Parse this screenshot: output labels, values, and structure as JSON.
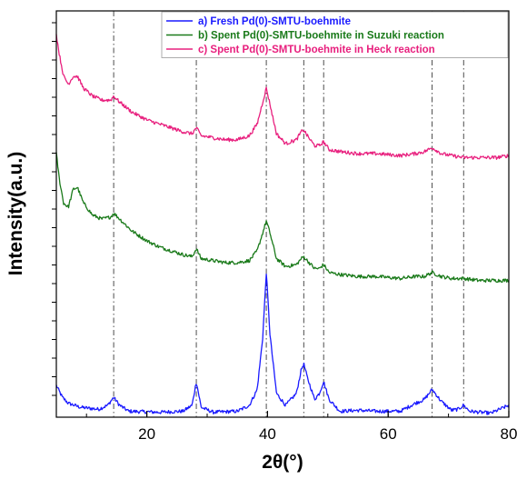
{
  "chart_data": {
    "type": "line",
    "title": "",
    "xlabel": "2θ(°)",
    "ylabel": "Intensity(a.u.)",
    "xlim": [
      5,
      80
    ],
    "x_ticks": [
      20,
      40,
      60,
      80
    ],
    "y_ticks_labeled": false,
    "reference_lines_x": [
      14.5,
      28.2,
      39.8,
      46.0,
      49.3,
      67.3,
      72.5
    ],
    "legend_position": "top-right",
    "grid": false,
    "series": [
      {
        "name": "a) Fresh Pd(0)-SMTU-boehmite",
        "color": "#1a1aff",
        "points": [
          [
            5,
            0.16
          ],
          [
            6,
            0.1
          ],
          [
            7,
            0.07
          ],
          [
            9,
            0.05
          ],
          [
            12,
            0.04
          ],
          [
            13.5,
            0.06
          ],
          [
            14.5,
            0.1
          ],
          [
            15.5,
            0.06
          ],
          [
            17,
            0.03
          ],
          [
            22,
            0.025
          ],
          [
            26,
            0.03
          ],
          [
            27.5,
            0.06
          ],
          [
            28.2,
            0.18
          ],
          [
            29,
            0.05
          ],
          [
            31,
            0.025
          ],
          [
            35,
            0.03
          ],
          [
            37,
            0.06
          ],
          [
            38.3,
            0.14
          ],
          [
            39.2,
            0.4
          ],
          [
            39.8,
            0.73
          ],
          [
            40.4,
            0.42
          ],
          [
            41.5,
            0.12
          ],
          [
            43,
            0.06
          ],
          [
            44.8,
            0.12
          ],
          [
            45.6,
            0.24
          ],
          [
            46.0,
            0.27
          ],
          [
            46.6,
            0.2
          ],
          [
            47.8,
            0.09
          ],
          [
            48.6,
            0.12
          ],
          [
            49.3,
            0.18
          ],
          [
            50.2,
            0.09
          ],
          [
            52,
            0.03
          ],
          [
            55,
            0.035
          ],
          [
            58,
            0.03
          ],
          [
            62,
            0.03
          ],
          [
            64.5,
            0.07
          ],
          [
            66,
            0.09
          ],
          [
            67.3,
            0.14
          ],
          [
            68.8,
            0.08
          ],
          [
            70.5,
            0.035
          ],
          [
            71.6,
            0.04
          ],
          [
            72.5,
            0.06
          ],
          [
            73.5,
            0.03
          ],
          [
            77,
            0.02
          ],
          [
            80,
            0.06
          ]
        ]
      },
      {
        "name": "b) Spent Pd(0)-SMTU-boehmite in Suzuki reaction",
        "color": "#1a7a1a",
        "points": [
          [
            5,
            1.33
          ],
          [
            5.5,
            1.2
          ],
          [
            6.2,
            1.08
          ],
          [
            7,
            1.06
          ],
          [
            7.8,
            1.15
          ],
          [
            8.5,
            1.16
          ],
          [
            9.5,
            1.08
          ],
          [
            11,
            1.02
          ],
          [
            12.5,
            1.0
          ],
          [
            14,
            1.01
          ],
          [
            14.5,
            1.03
          ],
          [
            15.5,
            1.0
          ],
          [
            17.5,
            0.94
          ],
          [
            20,
            0.89
          ],
          [
            22,
            0.86
          ],
          [
            24,
            0.84
          ],
          [
            26,
            0.82
          ],
          [
            27.5,
            0.81
          ],
          [
            28.2,
            0.85
          ],
          [
            29,
            0.8
          ],
          [
            31,
            0.79
          ],
          [
            33,
            0.78
          ],
          [
            35,
            0.78
          ],
          [
            37,
            0.79
          ],
          [
            38.3,
            0.84
          ],
          [
            39.2,
            0.93
          ],
          [
            39.8,
            0.99
          ],
          [
            40.4,
            0.93
          ],
          [
            41.5,
            0.8
          ],
          [
            43,
            0.76
          ],
          [
            44.8,
            0.77
          ],
          [
            45.6,
            0.8
          ],
          [
            46.0,
            0.81
          ],
          [
            46.6,
            0.79
          ],
          [
            47.8,
            0.75
          ],
          [
            48.6,
            0.75
          ],
          [
            49.3,
            0.77
          ],
          [
            50.2,
            0.73
          ],
          [
            52,
            0.72
          ],
          [
            55,
            0.71
          ],
          [
            58,
            0.71
          ],
          [
            62,
            0.7
          ],
          [
            64.5,
            0.71
          ],
          [
            66,
            0.71
          ],
          [
            67.3,
            0.73
          ],
          [
            68.8,
            0.71
          ],
          [
            70.5,
            0.7
          ],
          [
            72.5,
            0.7
          ],
          [
            75,
            0.69
          ],
          [
            78,
            0.69
          ],
          [
            80,
            0.69
          ]
        ]
      },
      {
        "name": "c) Spent Pd(0)-SMTU-boehmite in Heck reaction",
        "color": "#e8207e",
        "points": [
          [
            5,
            1.93
          ],
          [
            5.5,
            1.83
          ],
          [
            6.2,
            1.72
          ],
          [
            7,
            1.68
          ],
          [
            7.8,
            1.72
          ],
          [
            8.5,
            1.72
          ],
          [
            9.5,
            1.66
          ],
          [
            11,
            1.62
          ],
          [
            12.5,
            1.6
          ],
          [
            14,
            1.6
          ],
          [
            14.5,
            1.62
          ],
          [
            15.5,
            1.59
          ],
          [
            17.5,
            1.54
          ],
          [
            20,
            1.5
          ],
          [
            22,
            1.48
          ],
          [
            24,
            1.46
          ],
          [
            26,
            1.44
          ],
          [
            27.5,
            1.43
          ],
          [
            28.2,
            1.46
          ],
          [
            29,
            1.42
          ],
          [
            31,
            1.41
          ],
          [
            33,
            1.4
          ],
          [
            35,
            1.4
          ],
          [
            37,
            1.42
          ],
          [
            38.3,
            1.48
          ],
          [
            39.2,
            1.59
          ],
          [
            39.8,
            1.66
          ],
          [
            40.4,
            1.58
          ],
          [
            41.5,
            1.43
          ],
          [
            43,
            1.38
          ],
          [
            44.8,
            1.4
          ],
          [
            45.6,
            1.44
          ],
          [
            46.0,
            1.45
          ],
          [
            46.6,
            1.42
          ],
          [
            47.8,
            1.37
          ],
          [
            48.6,
            1.37
          ],
          [
            49.3,
            1.39
          ],
          [
            50.2,
            1.35
          ],
          [
            52,
            1.34
          ],
          [
            55,
            1.33
          ],
          [
            58,
            1.33
          ],
          [
            62,
            1.32
          ],
          [
            64.5,
            1.33
          ],
          [
            66,
            1.34
          ],
          [
            67.3,
            1.36
          ],
          [
            68.8,
            1.33
          ],
          [
            70.5,
            1.32
          ],
          [
            72.5,
            1.31
          ],
          [
            75,
            1.31
          ],
          [
            78,
            1.31
          ],
          [
            80,
            1.32
          ]
        ]
      }
    ]
  }
}
